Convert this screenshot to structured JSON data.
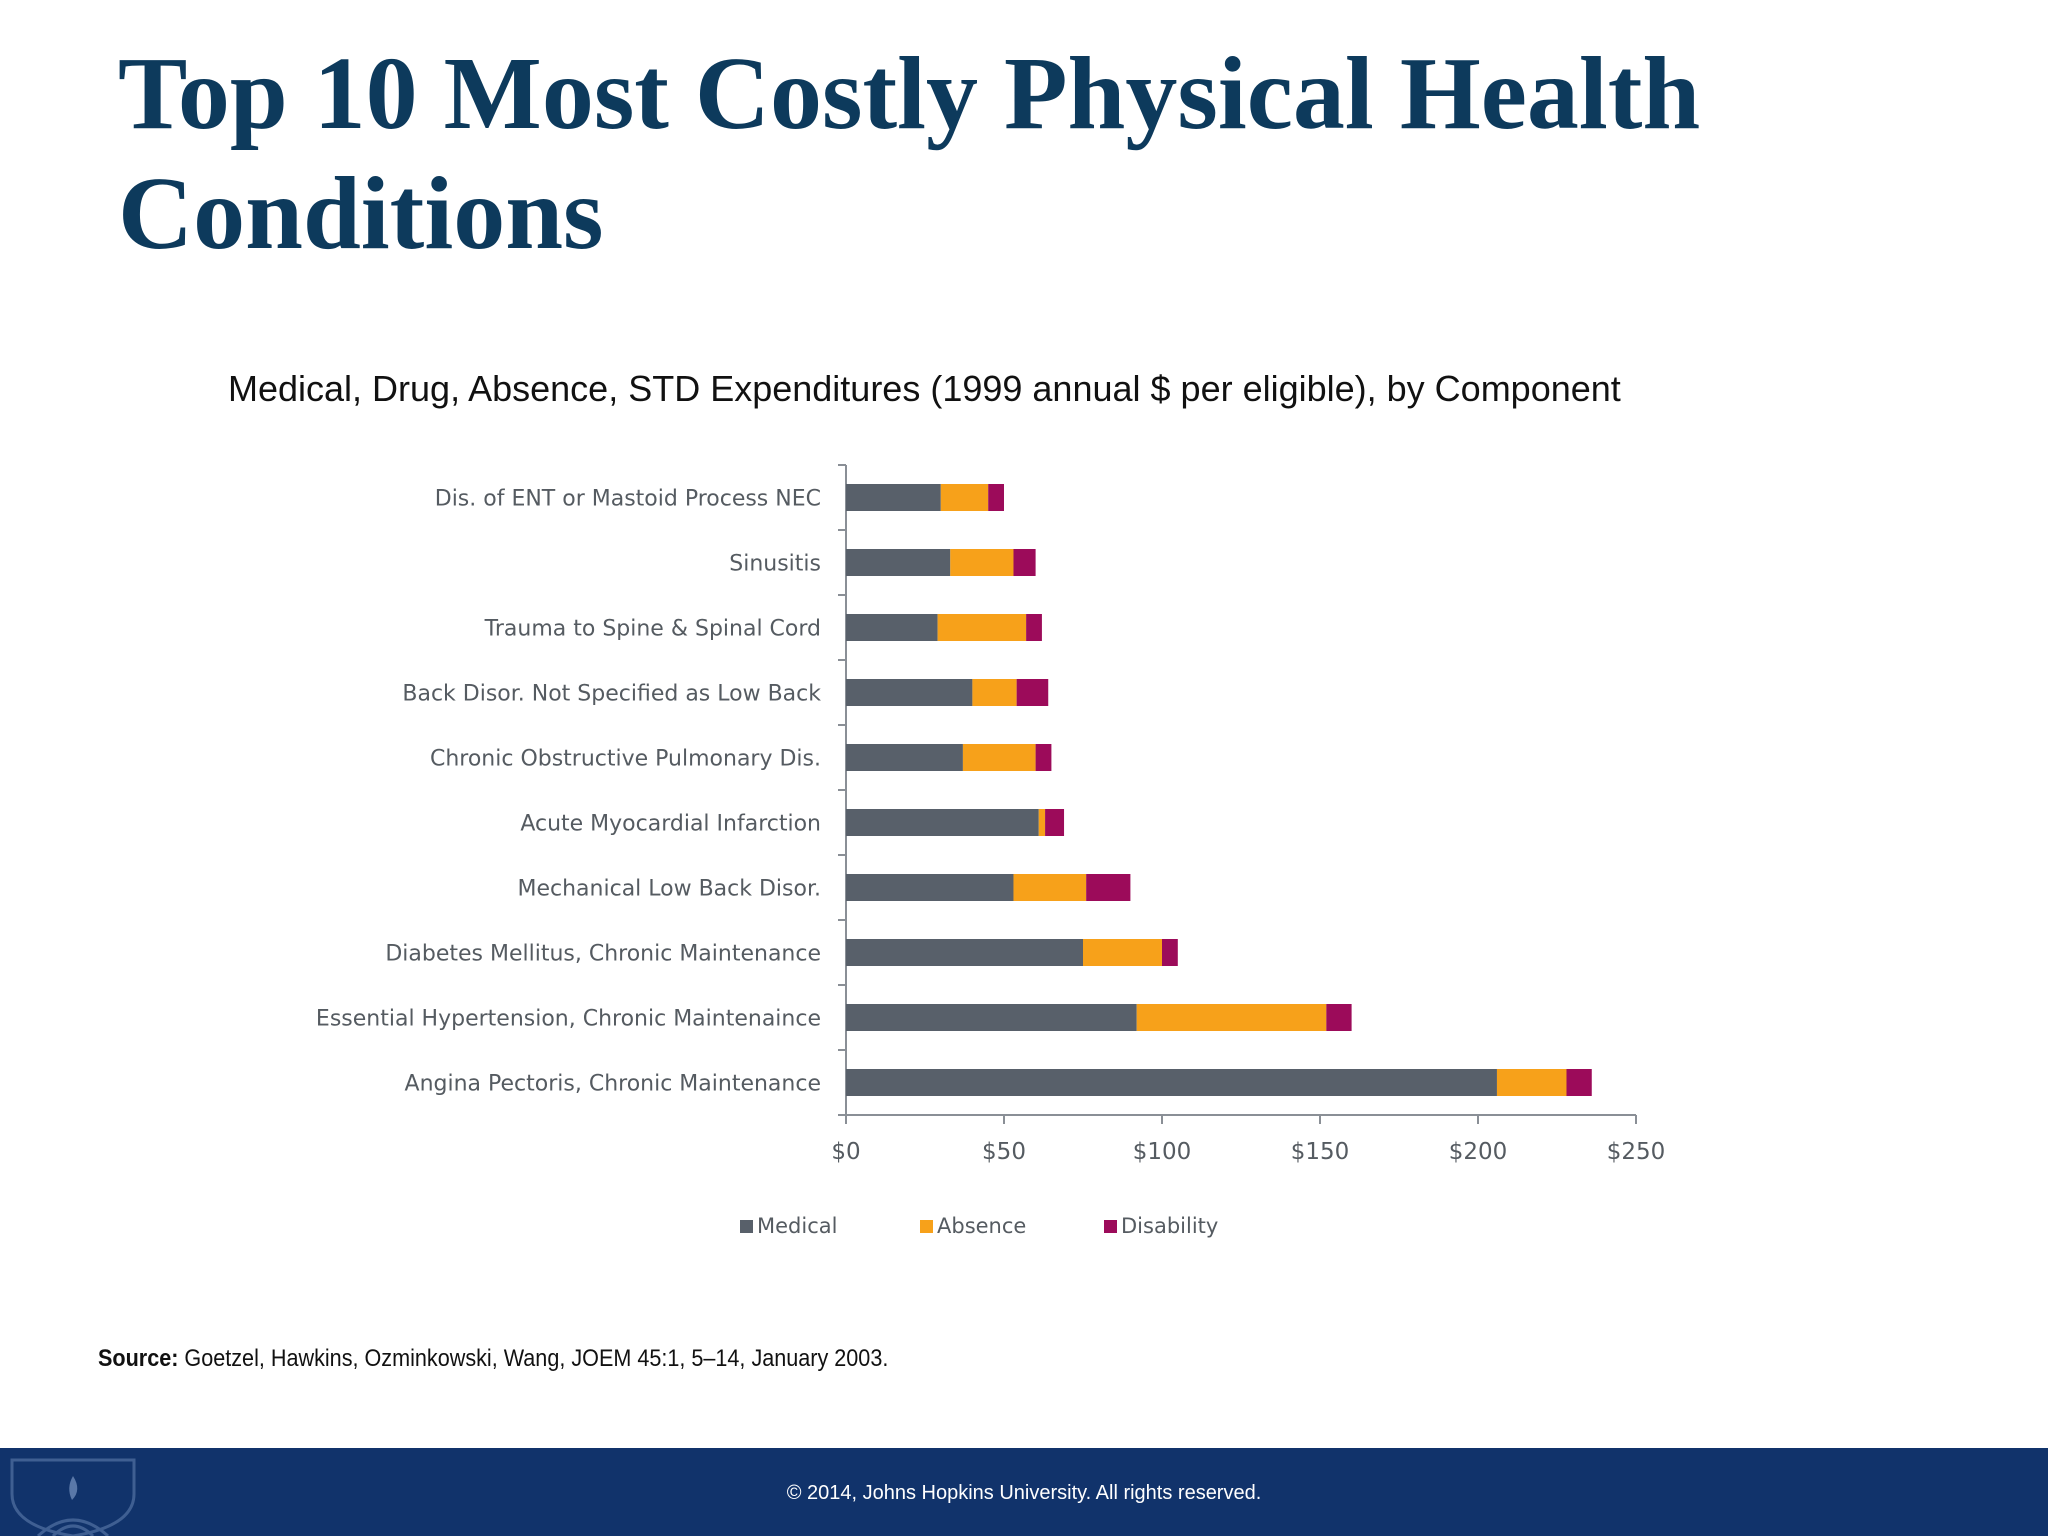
{
  "slide": {
    "title": "Top 10 Most Costly Physical Health Conditions",
    "source_label": "Source:",
    "source_text": "Goetzel, Hawkins, Ozminkowski, Wang, JOEM 45:1, 5–14, January 2003.",
    "footer_text": "© 2014, Johns Hopkins University. All rights reserved."
  },
  "chart_data": {
    "type": "bar",
    "orientation": "horizontal",
    "stacked": true,
    "title": "Medical, Drug, Absence, STD Expenditures (1999 annual $ per eligible), by Component",
    "categories": [
      "Dis. of ENT or Mastoid Process NEC",
      "Sinusitis",
      "Trauma to Spine & Spinal Cord",
      "Back Disor. Not Specified as Low Back",
      "Chronic Obstructive Pulmonary Dis.",
      "Acute Myocardial Infarction",
      "Mechanical Low Back Disor.",
      "Diabetes Mellitus, Chronic Maintenance",
      "Essential Hypertension, Chronic Maintenaince",
      "Angina Pectoris, Chronic Maintenance"
    ],
    "series": [
      {
        "name": "Medical",
        "color": "#58606a",
        "values": [
          30,
          33,
          29,
          40,
          37,
          61,
          53,
          75,
          92,
          206
        ]
      },
      {
        "name": "Absence",
        "color": "#f7a11a",
        "values": [
          15,
          20,
          28,
          14,
          23,
          2,
          23,
          25,
          60,
          22
        ]
      },
      {
        "name": "Disability",
        "color": "#9c0b5a",
        "values": [
          5,
          7,
          5,
          10,
          5,
          6,
          14,
          5,
          8,
          8
        ]
      }
    ],
    "xlim": [
      0,
      250
    ],
    "xticks": [
      0,
      50,
      100,
      150,
      200,
      250
    ],
    "xtick_labels": [
      "$0",
      "$50",
      "$100",
      "$150",
      "$200",
      "$250"
    ],
    "xlabel": "",
    "ylabel": "",
    "legend_position": "bottom",
    "grid": false
  }
}
